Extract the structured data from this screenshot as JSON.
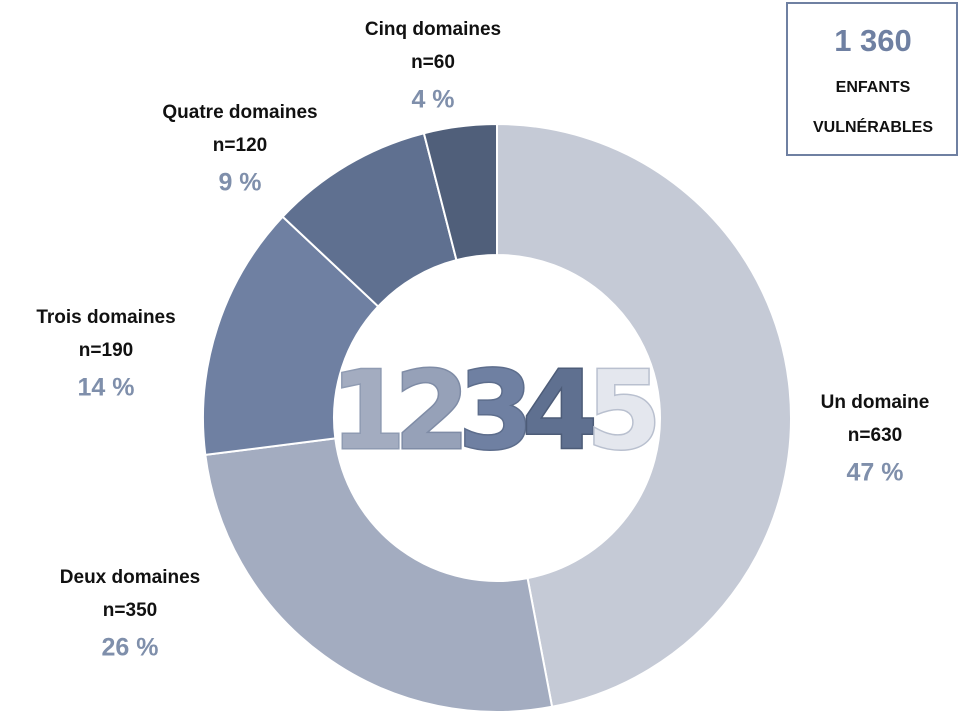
{
  "chart_data": {
    "type": "donut",
    "categories": [
      "Un domaine",
      "Deux domaines",
      "Trois domaines",
      "Quatre domaines",
      "Cinq domaines"
    ],
    "values": [
      47,
      26,
      14,
      9,
      4
    ],
    "value_labels": [
      "47 %",
      "26 %",
      "14 %",
      "9 %",
      "4 %"
    ],
    "counts": [
      630,
      350,
      190,
      120,
      60
    ],
    "count_labels": [
      "n=630",
      "n=350",
      "n=190",
      "n=120",
      "n=60"
    ],
    "colors": [
      "#c5cad6",
      "#a3acc0",
      "#6f80a2",
      "#5f7090",
      "#505f7a"
    ],
    "total": 1360,
    "total_label": "1 360",
    "total_caption": [
      "ENFANTS",
      "VULNÉRABLES"
    ],
    "center_digits": [
      "1",
      "2",
      "3",
      "4",
      "5"
    ]
  }
}
